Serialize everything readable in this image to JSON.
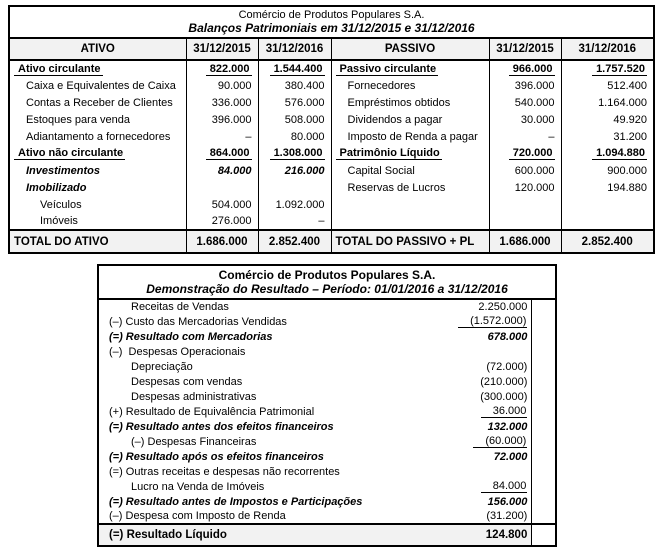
{
  "balance_sheet": {
    "title": "Comércio de Produtos Populares S.A.",
    "subtitle": "Balanços Patrimoniais em 31/12/2015 e 31/12/2016",
    "header": [
      "ATIVO",
      "31/12/2015",
      "31/12/2016",
      "PASSIVO",
      "31/12/2015",
      "31/12/2016"
    ],
    "ativo_rows": [
      {
        "label": "Ativo circulante",
        "v2015": "822.000",
        "v2016": "1.544.400",
        "style": "section",
        "indent": 0
      },
      {
        "label": "Caixa e Equivalentes de Caixa",
        "v2015": "90.000",
        "v2016": "380.400",
        "style": "item",
        "indent": 1
      },
      {
        "label": "Contas a Receber de Clientes",
        "v2015": "336.000",
        "v2016": "576.000",
        "style": "item",
        "indent": 1
      },
      {
        "label": "Estoques para venda",
        "v2015": "396.000",
        "v2016": "508.000",
        "style": "item",
        "indent": 1
      },
      {
        "label": "Adiantamento a fornecedores",
        "v2015": "–",
        "v2016": "80.000",
        "style": "item",
        "indent": 1
      },
      {
        "label": "Ativo não circulante",
        "v2015": "864.000",
        "v2016": "1.308.000",
        "style": "section",
        "indent": 0
      },
      {
        "label": "Investimentos",
        "v2015": "84.000",
        "v2016": "216.000",
        "style": "subsection",
        "indent": 1
      },
      {
        "label": "Imobilizado",
        "v2015": "",
        "v2016": "",
        "style": "subsection",
        "indent": 1
      },
      {
        "label": "Veículos",
        "v2015": "504.000",
        "v2016": "1.092.000",
        "style": "item",
        "indent": 2
      },
      {
        "label": "Imóveis",
        "v2015": "276.000",
        "v2016": "–",
        "style": "item",
        "indent": 2
      }
    ],
    "passivo_rows": [
      {
        "label": "Passivo circulante",
        "v2015": "966.000",
        "v2016": "1.757.520",
        "style": "section",
        "indent": 0
      },
      {
        "label": "Fornecedores",
        "v2015": "396.000",
        "v2016": "512.400",
        "style": "item",
        "indent": 1
      },
      {
        "label": "Empréstimos obtidos",
        "v2015": "540.000",
        "v2016": "1.164.000",
        "style": "item",
        "indent": 1
      },
      {
        "label": "Dividendos a pagar",
        "v2015": "30.000",
        "v2016": "49.920",
        "style": "item",
        "indent": 1
      },
      {
        "label": "Imposto de Renda a pagar",
        "v2015": "–",
        "v2016": "31.200",
        "style": "item",
        "indent": 1
      },
      {
        "label": "Patrimônio Líquido",
        "v2015": "720.000",
        "v2016": "1.094.880",
        "style": "section",
        "indent": 0
      },
      {
        "label": "Capital Social",
        "v2015": "600.000",
        "v2016": "900.000",
        "style": "item",
        "indent": 1
      },
      {
        "label": "Reservas de Lucros",
        "v2015": "120.000",
        "v2016": "194.880",
        "style": "item",
        "indent": 1
      },
      {
        "label": "",
        "v2015": "",
        "v2016": "",
        "style": "item",
        "indent": 1
      },
      {
        "label": "",
        "v2015": "",
        "v2016": "",
        "style": "item",
        "indent": 1
      }
    ],
    "total_ativo": {
      "label": "TOTAL DO ATIVO",
      "v2015": "1.686.000",
      "v2016": "2.852.400"
    },
    "total_passivo": {
      "label": "TOTAL DO PASSIVO + PL",
      "v2015": "1.686.000",
      "v2016": "2.852.400"
    }
  },
  "income_statement": {
    "title": "Comércio de Produtos Populares S.A.",
    "subtitle": "Demonstração do Resultado – Período: 01/01/2016 a 31/12/2016",
    "rows": [
      {
        "label": "Receitas de Vendas",
        "value": "2.250.000",
        "indent": 1,
        "style": "normal",
        "underline": false
      },
      {
        "label": "(–) Custo das Mercadorias Vendidas",
        "value": "(1.572.000)",
        "indent": 0,
        "style": "normal",
        "underline": true
      },
      {
        "label": "(=) Resultado com Mercadorias",
        "value": "678.000",
        "indent": 0,
        "style": "result",
        "underline": false
      },
      {
        "label": "(–)  Despesas Operacionais",
        "value": "",
        "indent": 0,
        "style": "normal",
        "underline": false
      },
      {
        "label": "Depreciação",
        "value": "(72.000)",
        "indent": 1,
        "style": "normal",
        "underline": false
      },
      {
        "label": "Despesas com vendas",
        "value": "(210.000)",
        "indent": 1,
        "style": "normal",
        "underline": false
      },
      {
        "label": "Despesas administrativas",
        "value": "(300.000)",
        "indent": 1,
        "style": "normal",
        "underline": false
      },
      {
        "label": "(+) Resultado de Equivalência Patrimonial",
        "value": "36.000",
        "indent": 0,
        "style": "normal",
        "underline": true
      },
      {
        "label": "(=) Resultado antes dos efeitos financeiros",
        "value": "132.000",
        "indent": 0,
        "style": "result",
        "underline": false
      },
      {
        "label": "(–) Despesas Financeiras",
        "value": "(60.000)",
        "indent": 1,
        "style": "normal",
        "underline": true
      },
      {
        "label": "(=) Resultado após os efeitos financeiros",
        "value": "72.000",
        "indent": 0,
        "style": "result",
        "underline": false
      },
      {
        "label": "(=) Outras receitas e despesas não recorrentes",
        "value": "",
        "indent": 0,
        "style": "normal",
        "underline": false
      },
      {
        "label": "Lucro na Venda de Imóveis",
        "value": "84.000",
        "indent": 1,
        "style": "normal",
        "underline": true
      },
      {
        "label": "(=) Resultado antes de Impostos e Participações",
        "value": "156.000",
        "indent": 0,
        "style": "result",
        "underline": false
      },
      {
        "label": "(–) Despesa com Imposto de Renda",
        "value": "(31.200)",
        "indent": 0,
        "style": "normal",
        "underline": false
      }
    ],
    "total": {
      "label": "(=) Resultado Líquido",
      "value": "124.800"
    }
  }
}
